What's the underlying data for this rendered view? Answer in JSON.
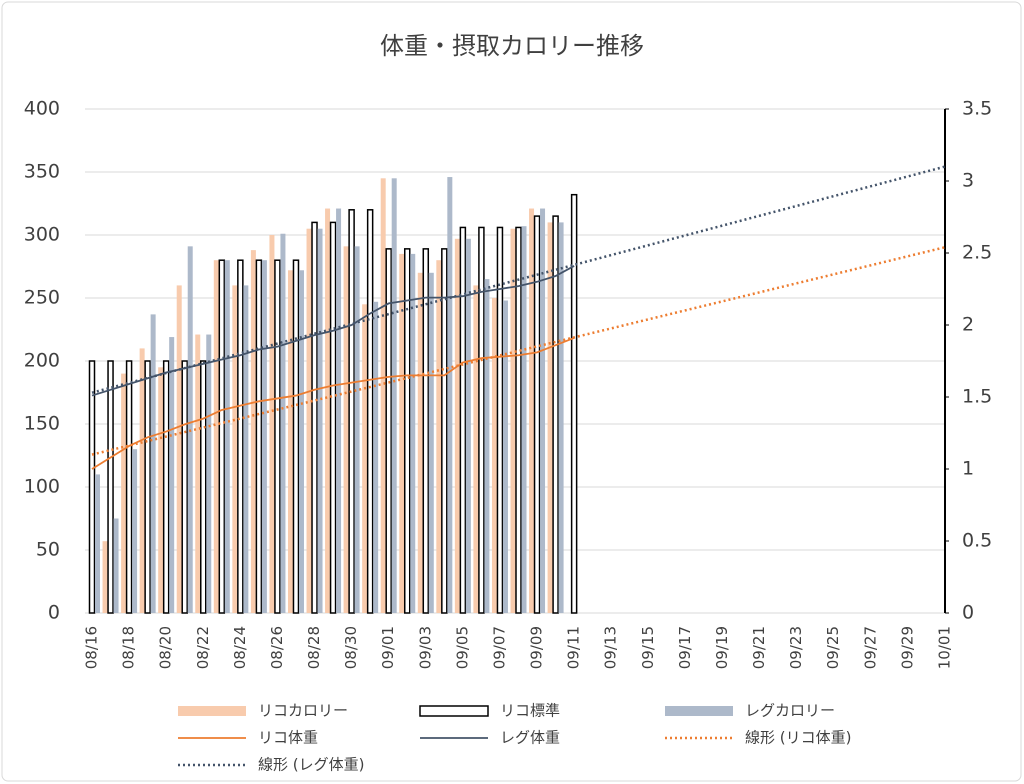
{
  "chart_data": {
    "type": "bar",
    "title": "体重・摂取カロリー推移",
    "categories": [
      "08/16",
      null,
      "08/18",
      null,
      "08/20",
      null,
      "08/22",
      null,
      "08/24",
      null,
      "08/26",
      null,
      "08/28",
      null,
      "08/30",
      null,
      "09/01",
      null,
      "09/03",
      null,
      "09/05",
      null,
      "09/07",
      null,
      "09/09",
      null,
      "09/11",
      null,
      "09/13",
      null,
      "09/15",
      null,
      "09/17",
      null,
      "09/19",
      null,
      "09/21",
      null,
      "09/23",
      null,
      "09/25",
      null,
      "09/27",
      null,
      "09/29",
      null,
      "10/01"
    ],
    "series": [
      {
        "name": "リコカロリー",
        "kind": "bar",
        "color": "#f8cbad",
        "values": [
          null,
          57,
          190,
          210,
          195,
          260,
          221,
          280,
          260,
          288,
          300,
          272,
          305,
          321,
          291,
          245,
          345,
          285,
          270,
          280,
          297,
          260,
          250,
          305,
          321,
          310,
          null,
          null,
          null,
          null,
          null,
          null,
          null,
          null,
          null,
          null,
          null,
          null,
          null,
          null,
          null,
          null,
          null,
          null,
          null,
          null,
          null
        ]
      },
      {
        "name": "リコ標準",
        "kind": "bar",
        "color": "#ffffff",
        "outline": "#000000",
        "values": [
          200,
          200,
          200,
          200,
          200,
          200,
          200,
          280,
          280,
          280,
          280,
          280,
          310,
          310,
          320,
          320,
          289,
          289,
          289,
          289,
          306,
          306,
          306,
          306,
          315,
          315,
          332,
          null,
          null,
          null,
          null,
          null,
          null,
          null,
          null,
          null,
          null,
          null,
          null,
          null,
          null,
          null,
          null,
          null,
          null,
          null,
          null
        ]
      },
      {
        "name": "レグカロリー",
        "kind": "bar",
        "color": "#adb9ca",
        "values": [
          110,
          75,
          130,
          237,
          219,
          291,
          221,
          280,
          260,
          280,
          301,
          272,
          305,
          321,
          291,
          247,
          345,
          285,
          270,
          346,
          297,
          265,
          248,
          307,
          321,
          310,
          null,
          null,
          null,
          null,
          null,
          null,
          null,
          null,
          null,
          null,
          null,
          null,
          null,
          null,
          null,
          null,
          null,
          null,
          null,
          null,
          null
        ]
      },
      {
        "name": "リコ体重",
        "kind": "line",
        "axis": "y2",
        "color": "#ed7d31",
        "values": [
          1.0,
          1.08,
          1.16,
          1.22,
          1.26,
          1.31,
          1.35,
          1.41,
          1.44,
          1.47,
          1.49,
          1.51,
          1.55,
          1.58,
          1.6,
          1.62,
          1.64,
          1.65,
          1.65,
          1.65,
          1.74,
          1.77,
          1.78,
          1.79,
          1.81,
          1.86,
          1.91,
          null,
          null,
          null,
          null,
          null,
          null,
          null,
          null,
          null,
          null,
          null,
          null,
          null,
          null,
          null,
          null,
          null,
          null,
          null,
          null
        ]
      },
      {
        "name": "レグ体重",
        "kind": "line",
        "axis": "y2",
        "color": "#44546a",
        "values": [
          1.51,
          1.55,
          1.59,
          1.63,
          1.67,
          1.7,
          1.73,
          1.76,
          1.79,
          1.83,
          1.85,
          1.89,
          1.93,
          1.96,
          2.0,
          2.08,
          2.15,
          2.17,
          2.19,
          2.19,
          2.2,
          2.23,
          2.25,
          2.27,
          2.3,
          2.34,
          2.41,
          null,
          null,
          null,
          null,
          null,
          null,
          null,
          null,
          null,
          null,
          null,
          null,
          null,
          null,
          null,
          null,
          null,
          null,
          null,
          null
        ]
      },
      {
        "name": "線形 (リコ体重)",
        "kind": "trend",
        "axis": "y2",
        "color": "#ed7d31",
        "x": [
          "08/16",
          "10/01"
        ],
        "values": [
          1.1,
          2.54
        ]
      },
      {
        "name": "線形 (レグ体重)",
        "kind": "trend",
        "axis": "y2",
        "color": "#44546a",
        "x": [
          "08/16",
          "10/01"
        ],
        "values": [
          1.53,
          3.1
        ]
      }
    ],
    "ylim": [
      0,
      400
    ],
    "yticks": [
      0,
      50,
      100,
      150,
      200,
      250,
      300,
      350,
      400
    ],
    "y2lim": [
      0,
      3.5
    ],
    "y2ticks": [
      0,
      0.5,
      1,
      1.5,
      2,
      2.5,
      3,
      3.5
    ],
    "grid": true
  }
}
